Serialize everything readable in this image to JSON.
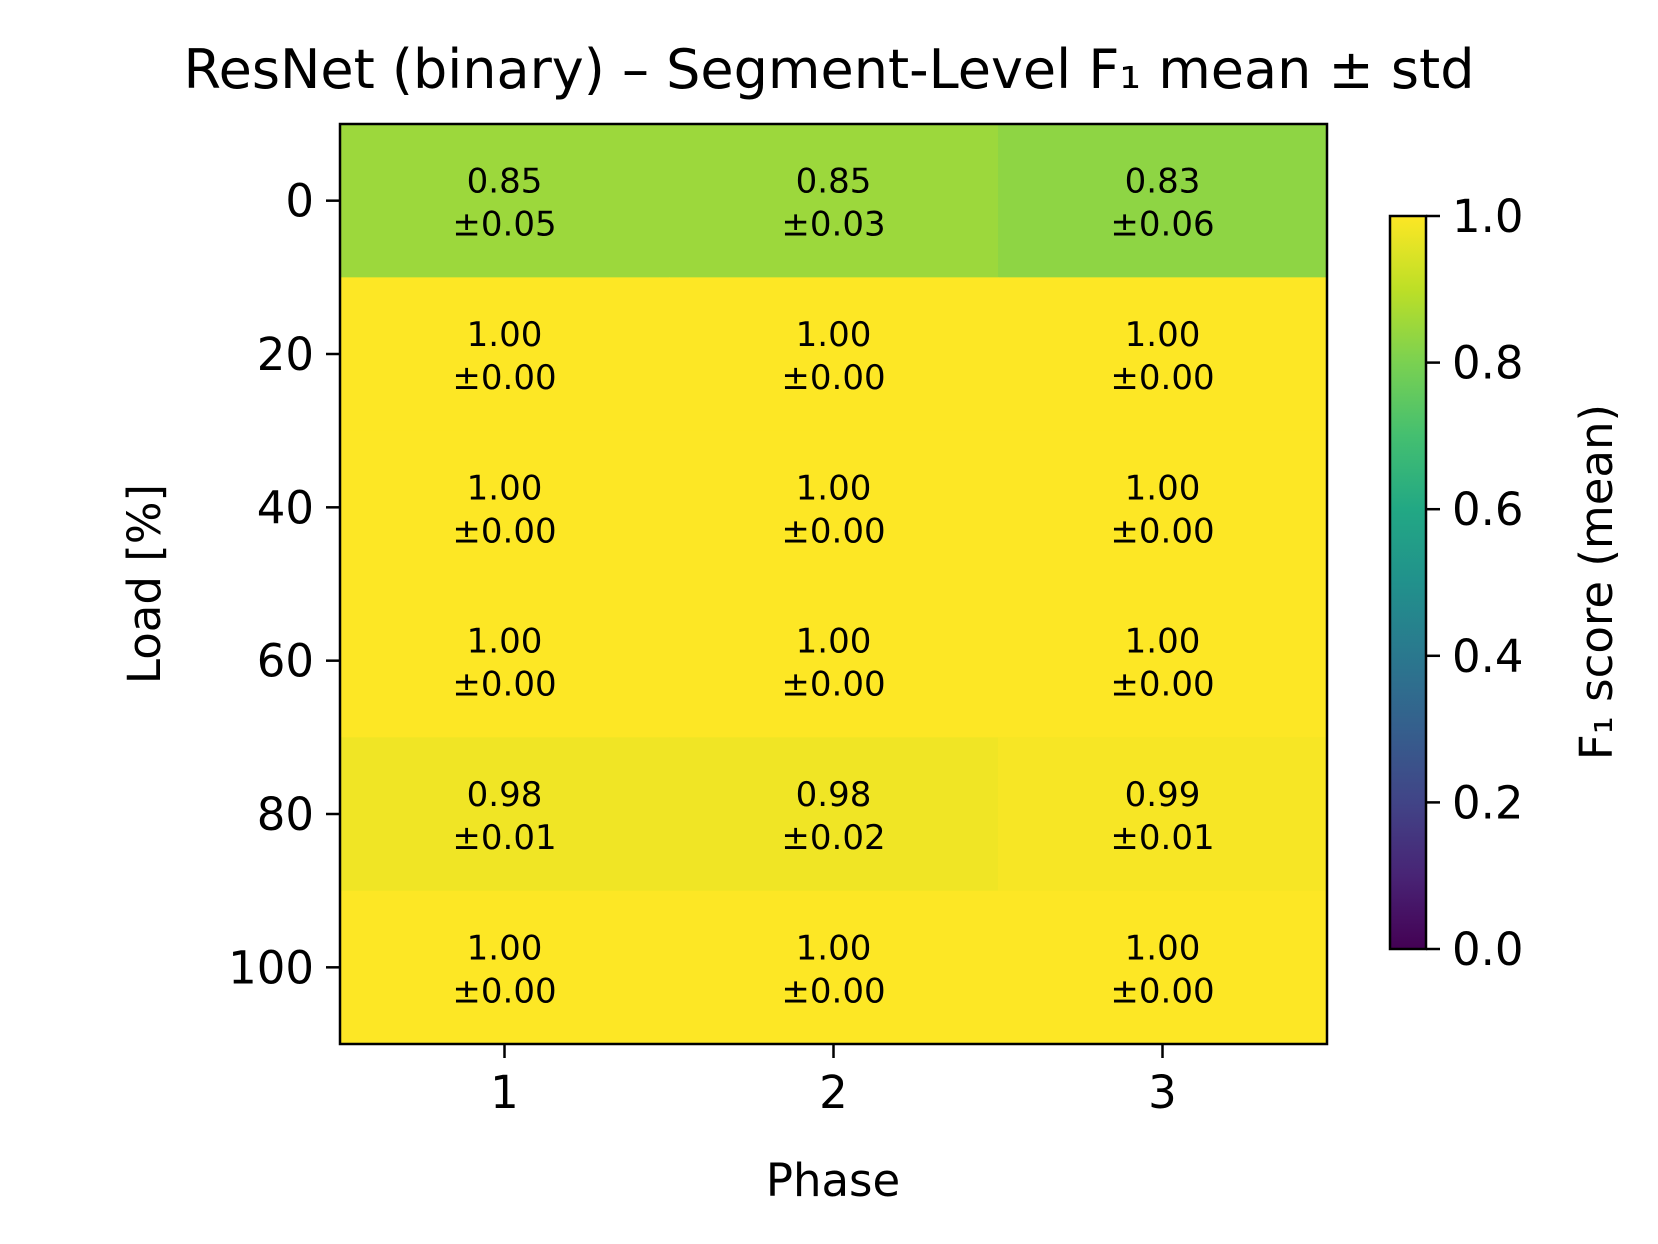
{
  "chart_data": {
    "type": "heatmap",
    "title": "ResNet (binary) – Segment-Level F₁ mean ± std",
    "xlabel": "Phase",
    "ylabel": "Load [%]",
    "x_categories": [
      "1",
      "2",
      "3"
    ],
    "y_categories": [
      "0",
      "20",
      "40",
      "60",
      "80",
      "100"
    ],
    "mean": [
      [
        0.85,
        0.85,
        0.83
      ],
      [
        1.0,
        1.0,
        1.0
      ],
      [
        1.0,
        1.0,
        1.0
      ],
      [
        1.0,
        1.0,
        1.0
      ],
      [
        0.98,
        0.98,
        0.99
      ],
      [
        1.0,
        1.0,
        1.0
      ]
    ],
    "std": [
      [
        0.05,
        0.03,
        0.06
      ],
      [
        0.0,
        0.0,
        0.0
      ],
      [
        0.0,
        0.0,
        0.0
      ],
      [
        0.0,
        0.0,
        0.0
      ],
      [
        0.01,
        0.02,
        0.01
      ],
      [
        0.0,
        0.0,
        0.0
      ]
    ],
    "cell_labels": [
      [
        [
          "0.85",
          "±0.05"
        ],
        [
          "0.85",
          "±0.03"
        ],
        [
          "0.83",
          "±0.06"
        ]
      ],
      [
        [
          "1.00",
          "±0.00"
        ],
        [
          "1.00",
          "±0.00"
        ],
        [
          "1.00",
          "±0.00"
        ]
      ],
      [
        [
          "1.00",
          "±0.00"
        ],
        [
          "1.00",
          "±0.00"
        ],
        [
          "1.00",
          "±0.00"
        ]
      ],
      [
        [
          "1.00",
          "±0.00"
        ],
        [
          "1.00",
          "±0.00"
        ],
        [
          "1.00",
          "±0.00"
        ]
      ],
      [
        [
          "0.98",
          "±0.01"
        ],
        [
          "0.98",
          "±0.02"
        ],
        [
          "0.99",
          "±0.01"
        ]
      ],
      [
        [
          "1.00",
          "±0.00"
        ],
        [
          "1.00",
          "±0.00"
        ],
        [
          "1.00",
          "±0.00"
        ]
      ]
    ],
    "colormap": "viridis",
    "colorbar": {
      "label": "F₁ score (mean)",
      "range": [
        0.0,
        1.0
      ],
      "ticks": [
        "0.0",
        "0.2",
        "0.4",
        "0.6",
        "0.8",
        "1.0"
      ]
    },
    "grid": false
  }
}
